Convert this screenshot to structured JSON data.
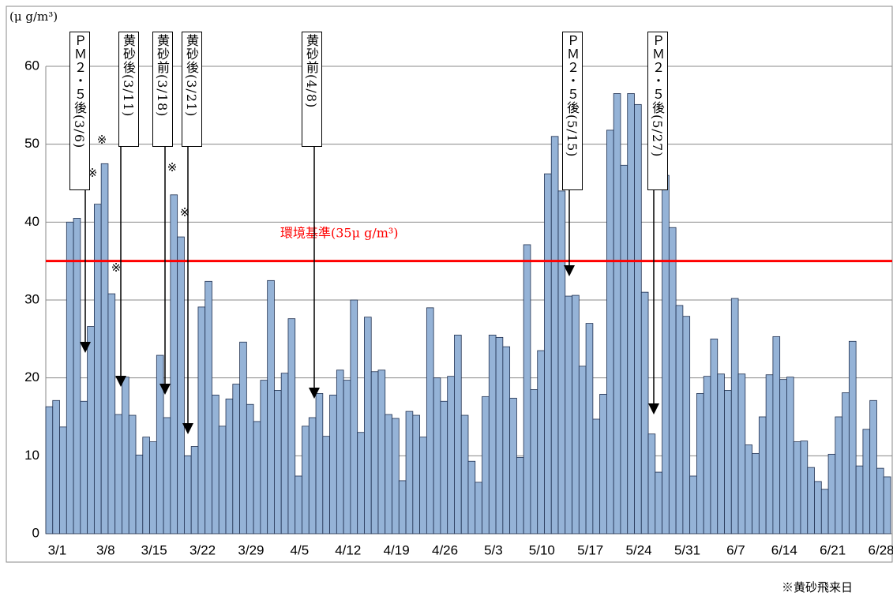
{
  "chart_data": {
    "type": "bar",
    "y_unit_label": "(μ g/m³)",
    "footnote": "※黄砂飛来日",
    "categories": [
      "3/1",
      null,
      null,
      null,
      null,
      null,
      null,
      "3/8",
      null,
      null,
      null,
      null,
      null,
      null,
      "3/15",
      null,
      null,
      null,
      null,
      null,
      null,
      "3/22",
      null,
      null,
      null,
      null,
      null,
      null,
      "3/29",
      null,
      null,
      null,
      null,
      null,
      null,
      "4/5",
      null,
      null,
      null,
      null,
      null,
      null,
      "4/12",
      null,
      null,
      null,
      null,
      null,
      null,
      "4/19",
      null,
      null,
      null,
      null,
      null,
      null,
      "4/26",
      null,
      null,
      null,
      null,
      null,
      null,
      "5/3",
      null,
      null,
      null,
      null,
      null,
      null,
      "5/10",
      null,
      null,
      null,
      null,
      null,
      null,
      "5/17",
      null,
      null,
      null,
      null,
      null,
      null,
      "5/24",
      null,
      null,
      null,
      null,
      null,
      null,
      "5/31",
      null,
      null,
      null,
      null,
      null,
      null,
      "6/7",
      null,
      null,
      null,
      null,
      null,
      null,
      "6/14",
      null,
      null,
      null,
      null,
      null,
      null,
      "6/21",
      null,
      null,
      null,
      null,
      null,
      null,
      "6/28",
      null,
      null
    ],
    "values": [
      16.3,
      17.1,
      13.7,
      40,
      40.5,
      17,
      26.6,
      42.3,
      47.5,
      30.8,
      15.3,
      20.1,
      15.2,
      10.1,
      12.4,
      11.8,
      22.9,
      14.9,
      43.5,
      38.1,
      10,
      11.2,
      29.1,
      32.4,
      17.8,
      13.8,
      17.3,
      19.2,
      24.6,
      16.6,
      14.4,
      19.7,
      32.5,
      18.4,
      20.6,
      27.6,
      7.4,
      13.8,
      14.9,
      18,
      12.5,
      17.8,
      21,
      19.7,
      30,
      13,
      27.8,
      20.8,
      21,
      15.3,
      14.8,
      6.8,
      15.7,
      15.2,
      12.4,
      29,
      20,
      17,
      20.2,
      25.5,
      15.2,
      9.3,
      6.6,
      17.6,
      25.5,
      25.2,
      24,
      17.4,
      9.8,
      37.1,
      18.5,
      23.5,
      46.2,
      51,
      44,
      30.5,
      30.6,
      21.5,
      27,
      14.7,
      17.9,
      51.8,
      56.5,
      47.3,
      56.5,
      55.1,
      31,
      12.8,
      7.9,
      46,
      39.3,
      29.3,
      27.9,
      7.4,
      18,
      20.2,
      25,
      20.5,
      18.4,
      30.2,
      20.5,
      11.4,
      10.3,
      15,
      20.4,
      25.3,
      19.8,
      20.1,
      11.8,
      11.9,
      8.5,
      6.7,
      5.7,
      10.2,
      15,
      18.1,
      24.7,
      8.7,
      13.4,
      17.1,
      8.4,
      7.3
    ],
    "color": "#95b3d7",
    "ylim": [
      0,
      60
    ],
    "yticks": [
      0,
      10,
      20,
      30,
      40,
      50,
      60
    ],
    "grid": true,
    "reference_line": {
      "value": 35,
      "label": "環境基準(35μ g/m³)",
      "color": "#ff0000"
    },
    "annotations": [
      "ＰＭ２・５後(3/6)",
      "黄砂後(3/11)",
      "黄砂前(3/18)",
      "黄砂後(3/21)",
      "黄砂前(4/8)",
      "ＰＭ２・５後(5/15)",
      "ＰＭ２・５後(5/27)"
    ],
    "dust_marks": [
      "※",
      "※",
      "※",
      "※",
      "※"
    ]
  }
}
